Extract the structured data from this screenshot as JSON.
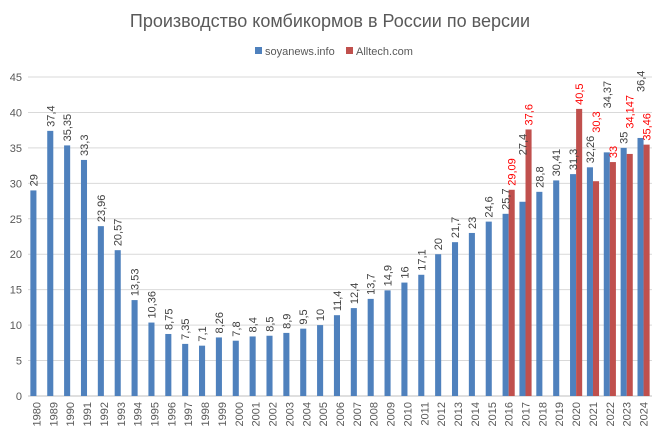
{
  "chart_data": {
    "type": "bar",
    "title": "Производство комбикормов в России по версии",
    "xlabel": "",
    "ylabel": "",
    "ylim": [
      0,
      45
    ],
    "yticks": [
      0,
      5,
      10,
      15,
      20,
      25,
      30,
      35,
      40,
      45
    ],
    "grid": true,
    "legend_position": "top",
    "categories": [
      "1980",
      "1989",
      "1990",
      "1991",
      "1992",
      "1993",
      "1994",
      "1995",
      "1996",
      "1997",
      "1998",
      "1999",
      "2000",
      "2001",
      "2002",
      "2003",
      "2004",
      "2005",
      "2006",
      "2007",
      "2008",
      "2009",
      "2010",
      "2011",
      "2012",
      "2013",
      "2014",
      "2015",
      "2016",
      "2017",
      "2018",
      "2019",
      "2020",
      "2021",
      "2022",
      "2023",
      "2024"
    ],
    "series": [
      {
        "name": "soyanews.info",
        "color": "#4f81bd",
        "label_color": "#404040",
        "values": [
          29,
          37.4,
          35.35,
          33.3,
          23.96,
          20.57,
          13.53,
          10.36,
          8.75,
          7.35,
          7.1,
          8.26,
          7.8,
          8.4,
          8.5,
          8.9,
          9.5,
          10,
          11.4,
          12.4,
          13.7,
          14.9,
          16,
          17.1,
          20,
          21.7,
          23,
          24.6,
          25.7,
          27.4,
          28.8,
          30.41,
          31.3,
          32.26,
          34.37,
          35,
          36.4
        ]
      },
      {
        "name": "Alltech.com",
        "color": "#c0504d",
        "label_color": "#ff0000",
        "values": [
          null,
          null,
          null,
          null,
          null,
          null,
          null,
          null,
          null,
          null,
          null,
          null,
          null,
          null,
          null,
          null,
          null,
          null,
          null,
          null,
          null,
          null,
          null,
          null,
          null,
          null,
          null,
          null,
          29.09,
          37.6,
          null,
          null,
          40.5,
          30.3,
          33,
          34.147,
          35.46
        ]
      }
    ]
  }
}
